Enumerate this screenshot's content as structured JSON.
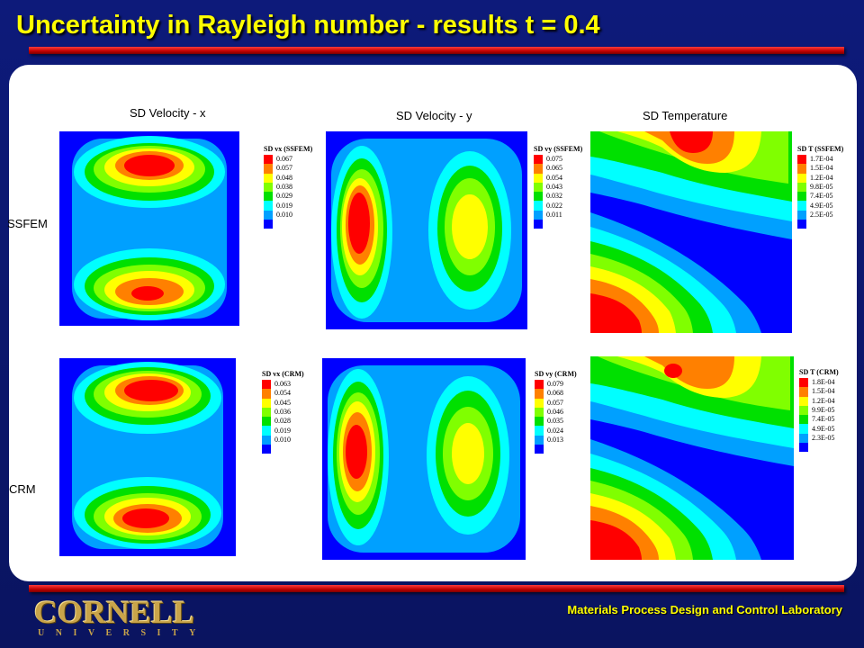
{
  "title": "Uncertainty in Rayleigh number - results t = 0.4",
  "footer": {
    "lab": "Materials Process Design and Control Laboratory",
    "logo_main": "CORNELL",
    "logo_sub": "UNIVERSITY"
  },
  "columns": [
    "SD Velocity - x",
    "SD Velocity - y",
    "SD Temperature"
  ],
  "rows": [
    "SSFEM",
    "CRM"
  ],
  "colors": {
    "background": "#0d1a7a",
    "title": "#ffff00",
    "bar": "#cc0000",
    "scale": [
      "#ff0000",
      "#ff8000",
      "#ffff00",
      "#80ff00",
      "#00e000",
      "#00ffff",
      "#00a0ff",
      "#0000ff"
    ]
  },
  "legends": {
    "vx_ssfem": {
      "title": "SD vx (SSFEM)",
      "values": [
        "0.067",
        "0.057",
        "0.048",
        "0.038",
        "0.029",
        "0.019",
        "0.010"
      ]
    },
    "vy_ssfem": {
      "title": "SD vy (SSFEM)",
      "values": [
        "0.075",
        "0.065",
        "0.054",
        "0.043",
        "0.032",
        "0.022",
        "0.011"
      ]
    },
    "t_ssfem": {
      "title": "SD T (SSFEM)",
      "values": [
        "1.7E-04",
        "1.5E-04",
        "1.2E-04",
        "9.8E-05",
        "7.4E-05",
        "4.9E-05",
        "2.5E-05"
      ]
    },
    "vx_crm": {
      "title": "SD vx (CRM)",
      "values": [
        "0.063",
        "0.054",
        "0.045",
        "0.036",
        "0.028",
        "0.019",
        "0.010"
      ]
    },
    "vy_crm": {
      "title": "SD vy (CRM)",
      "values": [
        "0.079",
        "0.068",
        "0.057",
        "0.046",
        "0.035",
        "0.024",
        "0.013"
      ]
    },
    "t_crm": {
      "title": "SD T (CRM)",
      "values": [
        "1.8E-04",
        "1.5E-04",
        "1.2E-04",
        "9.9E-05",
        "7.4E-05",
        "4.9E-05",
        "2.3E-05"
      ]
    }
  }
}
